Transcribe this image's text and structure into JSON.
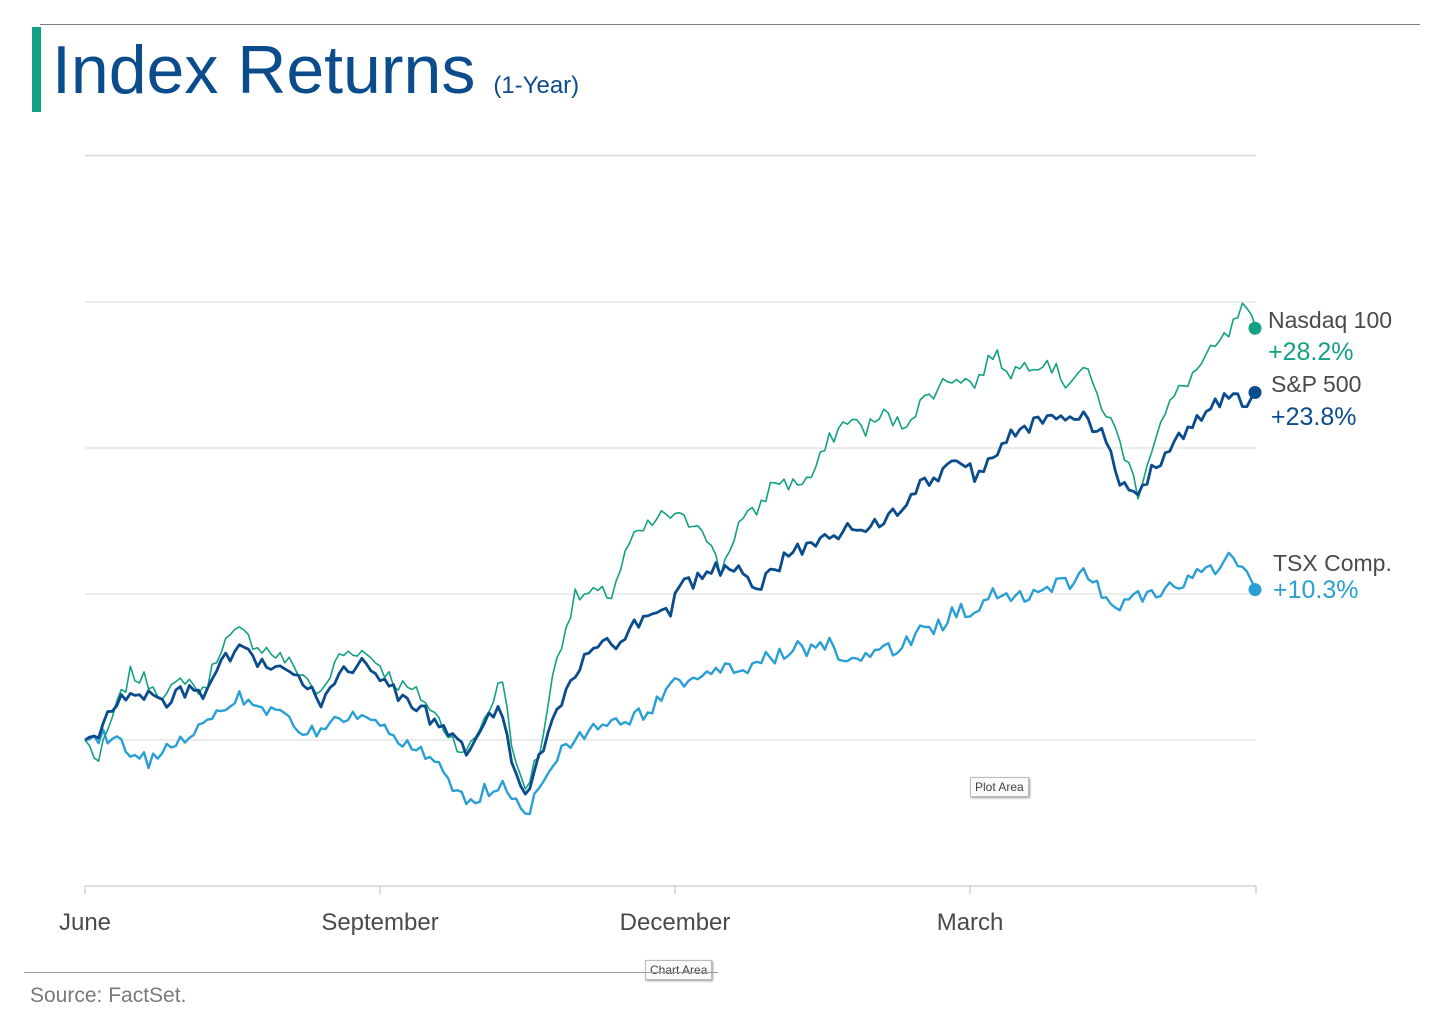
{
  "header": {
    "title": "Index Returns",
    "subtitle": "(1-Year)"
  },
  "footer": {
    "source": "Source: FactSet."
  },
  "tags": {
    "plot_area": "Plot Area",
    "chart_area": "Chart Area"
  },
  "chart_data": {
    "type": "line",
    "title": "Index Returns",
    "subtitle": "(1-Year)",
    "xlabel": "",
    "ylabel": "",
    "x_tick_labels": [
      "June",
      "September",
      "December",
      "March"
    ],
    "ylim": [
      -10,
      40
    ],
    "grid": true,
    "grid_values": [
      0,
      10,
      20,
      30,
      40
    ],
    "series": [
      {
        "name": "Nasdaq 100",
        "end_label": "+28.2%",
        "color": "#13a085",
        "anchors": [
          [
            0,
            0
          ],
          [
            3,
            -1.5
          ],
          [
            6,
            1.5
          ],
          [
            10,
            4.5
          ],
          [
            14,
            4
          ],
          [
            18,
            3
          ],
          [
            22,
            4.3
          ],
          [
            26,
            3.2
          ],
          [
            30,
            6.5
          ],
          [
            34,
            7.4
          ],
          [
            38,
            6.5
          ],
          [
            44,
            5.5
          ],
          [
            48,
            4.5
          ],
          [
            52,
            3
          ],
          [
            56,
            5.8
          ],
          [
            60,
            6.2
          ],
          [
            64,
            5.5
          ],
          [
            68,
            4
          ],
          [
            74,
            3
          ],
          [
            80,
            0.5
          ],
          [
            84,
            -1
          ],
          [
            88,
            1.5
          ],
          [
            92,
            4.2
          ],
          [
            95,
            -2
          ],
          [
            97,
            -3.3
          ],
          [
            100,
            -1
          ],
          [
            104,
            5.8
          ],
          [
            108,
            9.8
          ],
          [
            112,
            10
          ],
          [
            116,
            10
          ],
          [
            120,
            13.5
          ],
          [
            124,
            14.6
          ],
          [
            128,
            15.5
          ],
          [
            132,
            15
          ],
          [
            136,
            14.8
          ],
          [
            140,
            11.5
          ],
          [
            144,
            14.8
          ],
          [
            148,
            15.7
          ],
          [
            152,
            17.8
          ],
          [
            156,
            17.5
          ],
          [
            160,
            18
          ],
          [
            164,
            20.5
          ],
          [
            168,
            22
          ],
          [
            172,
            21.3
          ],
          [
            176,
            22.3
          ],
          [
            180,
            21.5
          ],
          [
            184,
            23
          ],
          [
            188,
            24.2
          ],
          [
            192,
            25
          ],
          [
            196,
            24.3
          ],
          [
            200,
            26.5
          ],
          [
            204,
            25.2
          ],
          [
            208,
            25.8
          ],
          [
            212,
            26
          ],
          [
            216,
            24.5
          ],
          [
            220,
            25.5
          ],
          [
            224,
            23
          ],
          [
            228,
            20.5
          ],
          [
            232,
            17
          ],
          [
            236,
            21
          ],
          [
            240,
            23.5
          ],
          [
            244,
            25
          ],
          [
            248,
            26.5
          ],
          [
            252,
            27.8
          ],
          [
            255,
            29.5
          ],
          [
            258,
            28.2
          ]
        ]
      },
      {
        "name": "S&P 500",
        "end_label": "+23.8%",
        "color": "#0b4c8c",
        "anchors": [
          [
            0,
            0
          ],
          [
            3,
            0.5
          ],
          [
            6,
            2
          ],
          [
            10,
            3.4
          ],
          [
            14,
            3
          ],
          [
            18,
            2.5
          ],
          [
            22,
            3.4
          ],
          [
            26,
            2.9
          ],
          [
            30,
            5.3
          ],
          [
            34,
            6
          ],
          [
            38,
            5.4
          ],
          [
            44,
            4.8
          ],
          [
            48,
            3.8
          ],
          [
            52,
            2.6
          ],
          [
            56,
            4.8
          ],
          [
            60,
            5.2
          ],
          [
            64,
            4.6
          ],
          [
            68,
            3.4
          ],
          [
            74,
            2.2
          ],
          [
            80,
            0.2
          ],
          [
            84,
            -0.8
          ],
          [
            88,
            1.2
          ],
          [
            92,
            2
          ],
          [
            95,
            -2.5
          ],
          [
            97,
            -3.7
          ],
          [
            100,
            -1.5
          ],
          [
            104,
            2
          ],
          [
            108,
            4.5
          ],
          [
            112,
            6.2
          ],
          [
            116,
            6.5
          ],
          [
            120,
            7.5
          ],
          [
            124,
            8.3
          ],
          [
            128,
            8.5
          ],
          [
            132,
            10.5
          ],
          [
            136,
            11.3
          ],
          [
            140,
            11.8
          ],
          [
            144,
            12
          ],
          [
            148,
            10.5
          ],
          [
            152,
            11.8
          ],
          [
            156,
            12.8
          ],
          [
            160,
            13.3
          ],
          [
            164,
            14.2
          ],
          [
            168,
            14.3
          ],
          [
            172,
            14.6
          ],
          [
            176,
            15.2
          ],
          [
            180,
            15.6
          ],
          [
            184,
            17.5
          ],
          [
            188,
            18.2
          ],
          [
            192,
            19.4
          ],
          [
            196,
            18.2
          ],
          [
            200,
            19.5
          ],
          [
            204,
            21.3
          ],
          [
            208,
            21.5
          ],
          [
            212,
            22.1
          ],
          [
            216,
            21.6
          ],
          [
            220,
            22.3
          ],
          [
            224,
            20.8
          ],
          [
            228,
            17.7
          ],
          [
            232,
            17
          ],
          [
            236,
            18.9
          ],
          [
            240,
            20.6
          ],
          [
            244,
            21.6
          ],
          [
            248,
            22.6
          ],
          [
            252,
            23.6
          ],
          [
            255,
            23.1
          ],
          [
            258,
            23.8
          ]
        ]
      },
      {
        "name": "TSX Comp.",
        "end_label": "+10.3%",
        "color": "#2a9fd4",
        "anchors": [
          [
            0,
            0
          ],
          [
            3,
            0.3
          ],
          [
            6,
            0.3
          ],
          [
            10,
            -0.8
          ],
          [
            14,
            -1.5
          ],
          [
            18,
            -0.3
          ],
          [
            22,
            0.3
          ],
          [
            26,
            1
          ],
          [
            30,
            2
          ],
          [
            34,
            3
          ],
          [
            38,
            2.3
          ],
          [
            44,
            1.5
          ],
          [
            48,
            0.8
          ],
          [
            52,
            0.3
          ],
          [
            56,
            1.5
          ],
          [
            60,
            1.7
          ],
          [
            64,
            1
          ],
          [
            68,
            0
          ],
          [
            74,
            -0.8
          ],
          [
            80,
            -2.5
          ],
          [
            84,
            -4.5
          ],
          [
            88,
            -3.5
          ],
          [
            92,
            -3.2
          ],
          [
            95,
            -4.5
          ],
          [
            97,
            -5.3
          ],
          [
            100,
            -3
          ],
          [
            104,
            -1.2
          ],
          [
            108,
            0.3
          ],
          [
            112,
            0.8
          ],
          [
            116,
            1.2
          ],
          [
            120,
            1.5
          ],
          [
            124,
            2
          ],
          [
            128,
            3.4
          ],
          [
            132,
            4
          ],
          [
            136,
            4.6
          ],
          [
            140,
            4.7
          ],
          [
            144,
            4.8
          ],
          [
            148,
            5.3
          ],
          [
            152,
            5.7
          ],
          [
            156,
            6.3
          ],
          [
            160,
            6
          ],
          [
            164,
            6.5
          ],
          [
            168,
            5.4
          ],
          [
            172,
            5.8
          ],
          [
            176,
            6
          ],
          [
            180,
            6.4
          ],
          [
            184,
            7.3
          ],
          [
            188,
            7.8
          ],
          [
            192,
            8.8
          ],
          [
            196,
            9
          ],
          [
            200,
            9.9
          ],
          [
            204,
            9.5
          ],
          [
            208,
            10
          ],
          [
            212,
            10.6
          ],
          [
            216,
            10.7
          ],
          [
            220,
            11.3
          ],
          [
            224,
            10.2
          ],
          [
            228,
            9.2
          ],
          [
            232,
            9.8
          ],
          [
            236,
            10.2
          ],
          [
            240,
            10.4
          ],
          [
            244,
            11.3
          ],
          [
            248,
            11.5
          ],
          [
            252,
            12.6
          ],
          [
            255,
            11.8
          ],
          [
            258,
            10.3
          ]
        ]
      }
    ]
  }
}
